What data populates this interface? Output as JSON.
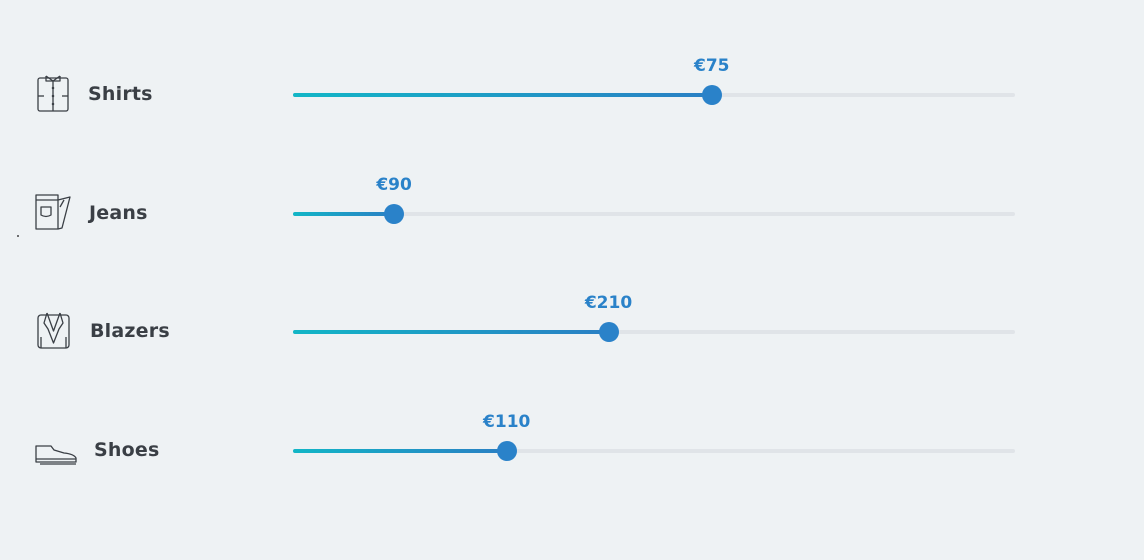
{
  "colors": {
    "background": "#eef2f4",
    "accent": "#2a82c9",
    "accent_start": "#12b6c6",
    "track": "#e0e4e8",
    "label": "#3a3f45"
  },
  "sliders": [
    {
      "label": "Shirts",
      "icon": "shirt-icon",
      "value_text": "€75",
      "fraction": 0.58
    },
    {
      "label": "Jeans",
      "icon": "jeans-icon",
      "value_text": "€90",
      "fraction": 0.14
    },
    {
      "label": "Blazers",
      "icon": "blazer-icon",
      "value_text": "€210",
      "fraction": 0.437
    },
    {
      "label": "Shoes",
      "icon": "shoe-icon",
      "value_text": "€110",
      "fraction": 0.296
    }
  ]
}
